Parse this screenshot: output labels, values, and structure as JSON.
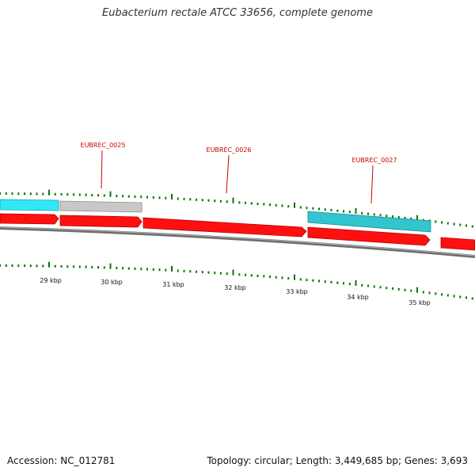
{
  "title": "Eubacterium rectale ATCC 33656, complete genome",
  "footer": {
    "accession": "Accession: NC_012781",
    "summary": "Topology: circular; Length: 3,449,685 bp; Genes: 3,693"
  },
  "colors": {
    "forward_cds": "#ff0000",
    "reverse_cds": "#33cccc",
    "reverse_cds_light": "#33e0f0",
    "other_feature": "#c0c0c0",
    "backbone": "#808080",
    "tick": "#007700",
    "label": "#cc0000"
  },
  "kbp_ticks": [
    "29 kbp",
    "30 kbp",
    "31 kbp",
    "32 kbp",
    "33 kbp",
    "34 kbp",
    "35 kbp"
  ],
  "gene_labels": [
    "EUBREC_0025",
    "EUBREC_0026",
    "EUBREC_0027"
  ]
}
